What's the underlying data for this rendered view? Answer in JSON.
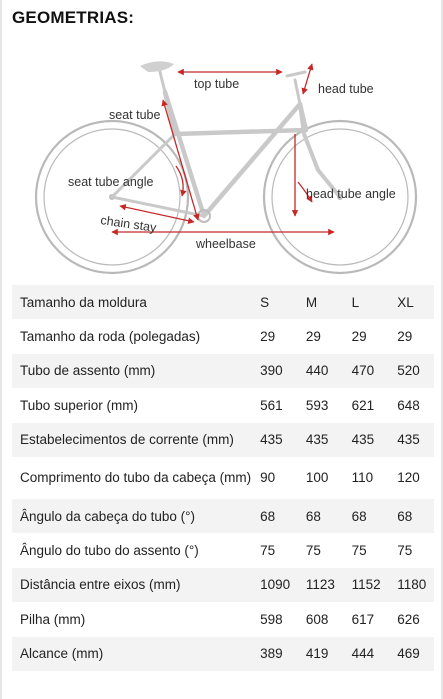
{
  "title": "GEOMETRIAS:",
  "diagram": {
    "top_tube": "top tube",
    "head_tube": "head tube",
    "seat_tube": "seat tube",
    "seat_tube_angle": "seat tube angle",
    "head_tube_angle": "head tube angle",
    "chain_stay": "chain stay",
    "wheelbase": "wheelbase"
  },
  "table": {
    "header": [
      "Tamanho da moldura",
      "S",
      "M",
      "L",
      "XL"
    ],
    "rows": [
      [
        "Tamanho da roda (polegadas)",
        "29",
        "29",
        "29",
        "29"
      ],
      [
        "Tubo de assento (mm)",
        "390",
        "440",
        "470",
        "520"
      ],
      [
        "Tubo superior (mm)",
        "561",
        "593",
        "621",
        "648"
      ],
      [
        "Estabelecimentos de corrente (mm)",
        "435",
        "435",
        "435",
        "435"
      ],
      [
        "Comprimento do tubo da cabeça (mm)",
        "90",
        "100",
        "110",
        "120"
      ],
      [
        "Ângulo da cabeça do tubo (°)",
        "68",
        "68",
        "68",
        "68"
      ],
      [
        "Ângulo do tubo do assento (°)",
        "75",
        "75",
        "75",
        "75"
      ],
      [
        "Distância entre eixos (mm)",
        "1090",
        "1123",
        "1152",
        "1180"
      ],
      [
        "Pilha (mm)",
        "598",
        "608",
        "617",
        "626"
      ],
      [
        "Alcance (mm)",
        "389",
        "419",
        "444",
        "469"
      ]
    ]
  }
}
